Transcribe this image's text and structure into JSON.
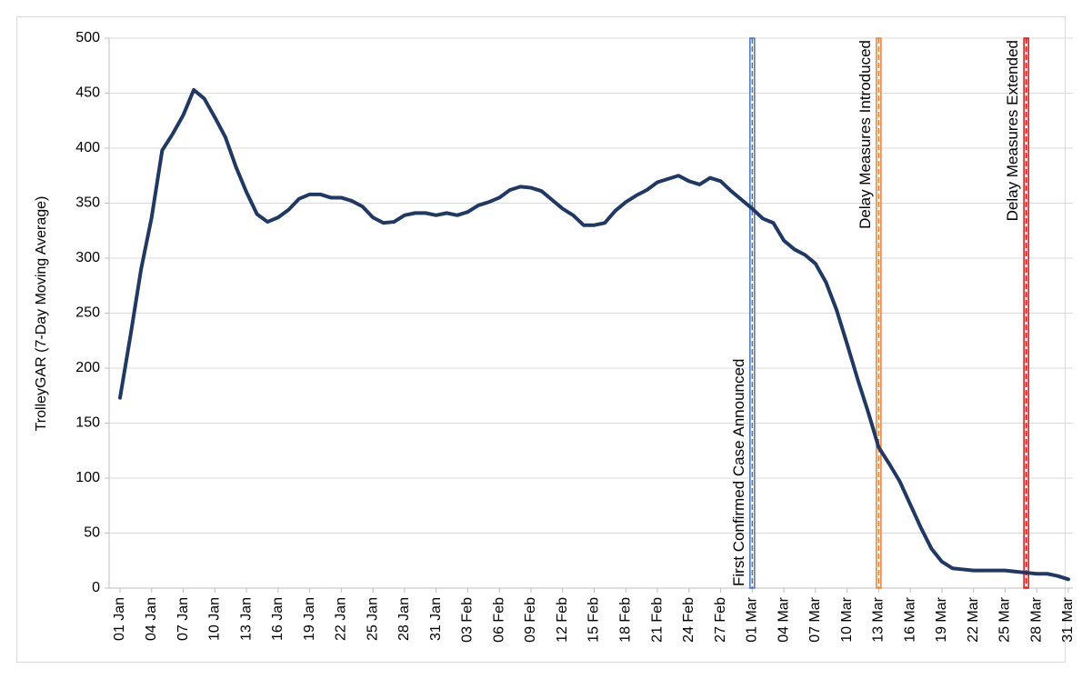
{
  "chart_data": {
    "type": "line",
    "y_label": "TrolleyGAR (7-Day Moving Average)",
    "categories": [
      "01 Jan",
      null,
      null,
      "04 Jan",
      null,
      null,
      "07 Jan",
      null,
      null,
      "10 Jan",
      null,
      null,
      "13 Jan",
      null,
      null,
      "16 Jan",
      null,
      null,
      "19 Jan",
      null,
      null,
      "22 Jan",
      null,
      null,
      "25 Jan",
      null,
      null,
      "28 Jan",
      null,
      null,
      "31 Jan",
      null,
      null,
      "03 Feb",
      null,
      null,
      "06 Feb",
      null,
      null,
      "09 Feb",
      null,
      null,
      "12 Feb",
      null,
      null,
      "15 Feb",
      null,
      null,
      "18 Feb",
      null,
      null,
      "21 Feb",
      null,
      null,
      "24 Feb",
      null,
      null,
      "27 Feb",
      null,
      null,
      "01 Mar",
      null,
      null,
      "04 Mar",
      null,
      null,
      "07 Mar",
      null,
      null,
      "10 Mar",
      null,
      null,
      "13 Mar",
      null,
      null,
      "16 Mar",
      null,
      null,
      "19 Mar",
      null,
      null,
      "22 Mar",
      null,
      null,
      "25 Mar",
      null,
      null,
      "28 Mar",
      null,
      null,
      "31 Mar"
    ],
    "values": [
      173,
      230,
      290,
      337,
      398,
      413,
      430,
      453,
      445,
      428,
      410,
      383,
      360,
      340,
      333,
      337,
      344,
      354,
      358,
      358,
      355,
      355,
      352,
      347,
      337,
      332,
      333,
      339,
      341,
      341,
      339,
      341,
      339,
      342,
      348,
      351,
      355,
      362,
      365,
      364,
      361,
      353,
      345,
      339,
      330,
      330,
      332,
      343,
      351,
      357,
      362,
      369,
      372,
      375,
      370,
      367,
      373,
      370,
      361,
      353,
      345,
      336,
      332,
      316,
      308,
      303,
      295,
      278,
      253,
      222,
      190,
      160,
      128,
      113,
      97,
      76,
      55,
      36,
      24,
      18,
      17,
      16,
      16,
      16,
      16,
      15,
      14,
      13,
      13,
      11,
      8
    ],
    "color": "#203864",
    "ylim": [
      0,
      500
    ],
    "yticks": [
      0,
      50,
      100,
      150,
      200,
      250,
      300,
      350,
      400,
      450,
      500
    ],
    "grid": true,
    "annotations": [
      {
        "text": "First Confirmed Case Announced",
        "x": 60,
        "color": "#4472c4",
        "align": "bottom"
      },
      {
        "text": "Delay Measures Introduced",
        "x": 72,
        "color": "#ed7d31",
        "align": "top"
      },
      {
        "text": "Delay Measures Extended",
        "x": 86,
        "color": "#ff0000",
        "align": "top"
      }
    ]
  }
}
